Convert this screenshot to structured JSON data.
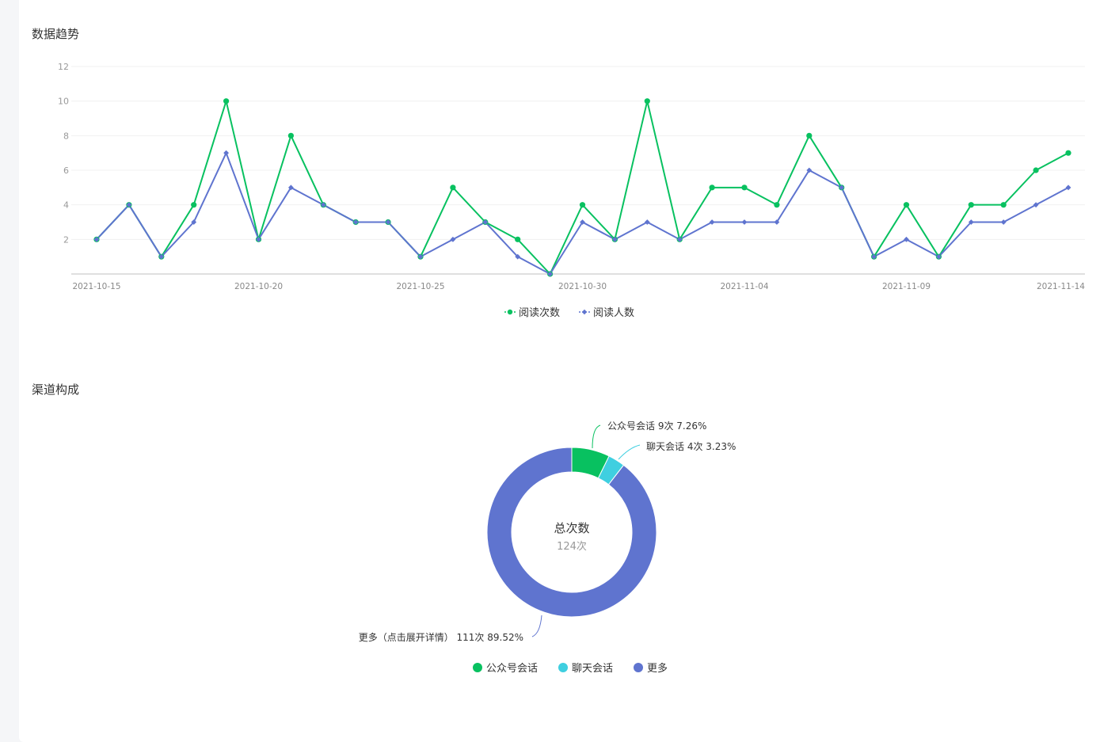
{
  "sections": {
    "trend_title": "数据趋势",
    "channel_title": "渠道构成"
  },
  "colors": {
    "green": "#08c160",
    "blue": "#5f74cf",
    "cyan": "#3fcfe0",
    "axis": "#cccccc",
    "grid": "#f0f0f0"
  },
  "chart_data": [
    {
      "type": "line",
      "title": "数据趋势",
      "ylim": [
        0,
        12
      ],
      "yticks": [
        2,
        4,
        6,
        8,
        10,
        12
      ],
      "grid": true,
      "legend_position": "bottom-center",
      "x": [
        "2021-10-15",
        "2021-10-16",
        "2021-10-17",
        "2021-10-18",
        "2021-10-19",
        "2021-10-20",
        "2021-10-21",
        "2021-10-22",
        "2021-10-23",
        "2021-10-24",
        "2021-10-25",
        "2021-10-26",
        "2021-10-27",
        "2021-10-28",
        "2021-10-29",
        "2021-10-30",
        "2021-10-31",
        "2021-11-01",
        "2021-11-02",
        "2021-11-03",
        "2021-11-04",
        "2021-11-05",
        "2021-11-06",
        "2021-11-07",
        "2021-11-08",
        "2021-11-09",
        "2021-11-10",
        "2021-11-11",
        "2021-11-12",
        "2021-11-13",
        "2021-11-14"
      ],
      "xtick_labels": [
        "2021-10-15",
        "2021-10-20",
        "2021-10-25",
        "2021-10-30",
        "2021-11-04",
        "2021-11-09",
        "2021-11-14"
      ],
      "series": [
        {
          "name": "阅读次数",
          "color": "#08c160",
          "marker": "circle",
          "values": [
            2,
            4,
            1,
            4,
            10,
            2,
            8,
            4,
            3,
            3,
            1,
            5,
            3,
            2,
            0,
            4,
            2,
            10,
            2,
            5,
            5,
            4,
            8,
            5,
            1,
            4,
            1,
            4,
            4,
            6,
            7
          ]
        },
        {
          "name": "阅读人数",
          "color": "#5f74cf",
          "marker": "diamond",
          "values": [
            2,
            4,
            1,
            3,
            7,
            2,
            5,
            4,
            3,
            3,
            1,
            2,
            3,
            1,
            0,
            3,
            2,
            3,
            2,
            3,
            3,
            3,
            6,
            5,
            1,
            2,
            1,
            3,
            3,
            4,
            5
          ]
        }
      ]
    },
    {
      "type": "pie",
      "title": "渠道构成",
      "donut": true,
      "center_label": "总次数",
      "center_value": "124次",
      "legend_position": "bottom-center",
      "slices": [
        {
          "name": "公众号会话",
          "value": 9,
          "percent": "7.26%",
          "label": "公众号会话 9次 7.26%",
          "color": "#08c160"
        },
        {
          "name": "聊天会话",
          "value": 4,
          "percent": "3.23%",
          "label": "聊天会话 4次 3.23%",
          "color": "#3fcfe0"
        },
        {
          "name": "更多",
          "value": 111,
          "percent": "89.52%",
          "label": "更多（点击展开详情） 111次 89.52%",
          "color": "#5f74cf"
        }
      ]
    }
  ]
}
